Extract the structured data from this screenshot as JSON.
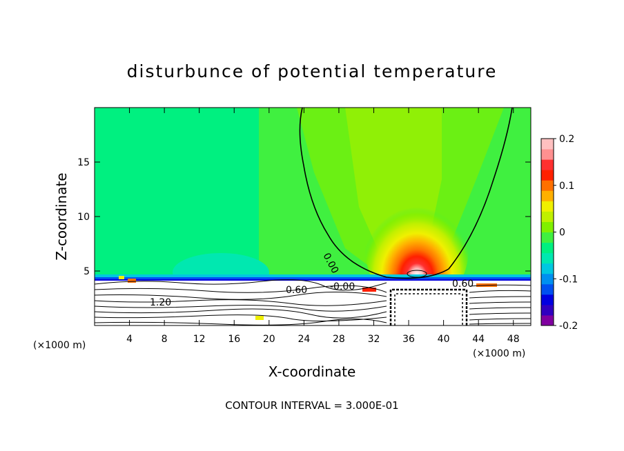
{
  "chart_data": {
    "type": "heatmap",
    "title": "disturbunce of potential temperature",
    "xlabel": "X-coordinate",
    "ylabel": "Z-coordinate",
    "x_unit": "(×1000 m)",
    "x_unit_right": "(×1000 m)",
    "xlim": [
      0,
      50
    ],
    "ylim": [
      0,
      20
    ],
    "x_ticks": [
      4,
      8,
      12,
      16,
      20,
      24,
      28,
      32,
      36,
      40,
      44,
      48
    ],
    "x_tick_labels": [
      "4",
      "8",
      "12",
      "16",
      "20",
      "24",
      "28",
      "32",
      "36",
      "40",
      "44",
      "48"
    ],
    "y_ticks": [
      5,
      10,
      15
    ],
    "y_tick_labels": [
      "5",
      "10",
      "15"
    ],
    "colorbar": {
      "range": [
        -0.2,
        0.2
      ],
      "levels": [
        -0.2,
        -0.175,
        -0.15,
        -0.125,
        -0.1,
        -0.075,
        -0.05,
        -0.025,
        0,
        0.025,
        0.05,
        0.075,
        0.1,
        0.125,
        0.15,
        0.175,
        0.2
      ],
      "colors": [
        "#8000a0",
        "#3000c0",
        "#0000e0",
        "#0050f0",
        "#0090f0",
        "#00c8e0",
        "#00e8b0",
        "#00f080",
        "#40f040",
        "#80f000",
        "#c0f000",
        "#f0f000",
        "#ffb000",
        "#ff7000",
        "#ff2000",
        "#ff3030",
        "#ff9090",
        "#ffc0c0"
      ],
      "tick_values": [
        0.2,
        0.1,
        0,
        -0.1,
        -0.2
      ],
      "tick_labels": [
        "0.2",
        "0.1",
        "0",
        "-0.1",
        "-0.2"
      ]
    },
    "warm_anomaly": {
      "center_x": 36.5,
      "center_z": 4.8,
      "peak": 0.2
    },
    "obstacle": {
      "x_range": [
        34,
        42
      ],
      "z_top": 3.5
    },
    "contour_labels": [
      "0.00",
      "0.60",
      "-0.00",
      "0.60",
      "1.20"
    ],
    "annotation": "CONTOUR INTERVAL = 3.000E-01"
  }
}
